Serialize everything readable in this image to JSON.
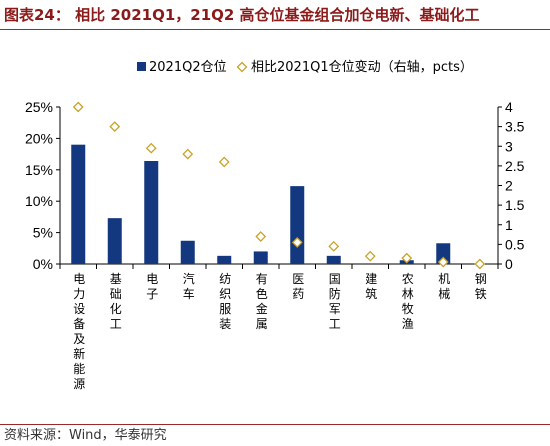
{
  "header": {
    "title": "图表24：  相比 2021Q1，21Q2 高仓位基金组合加仓电新、基础化工"
  },
  "footer": {
    "source": "资料来源：Wind，华泰研究"
  },
  "colors": {
    "bar": "#14387f",
    "marker_edge": "#c9a227",
    "title": "#8b1a1a",
    "rule": "#9a2a2a"
  },
  "chart_data": {
    "type": "bar",
    "categories": [
      "电力设备及新能源",
      "基础化工",
      "电子",
      "汽车",
      "纺织服装",
      "有色金属",
      "医药",
      "国防军工",
      "建筑",
      "农林牧渔",
      "机械",
      "钢铁"
    ],
    "series": [
      {
        "name": "2021Q2仓位",
        "type": "bar",
        "axis": "left",
        "values": [
          19.0,
          7.3,
          16.4,
          3.7,
          1.3,
          2.0,
          12.4,
          1.3,
          0.1,
          0.6,
          3.3,
          0.0
        ]
      },
      {
        "name": "相比2021Q1仓位变动（右轴，pcts）",
        "type": "scatter",
        "marker": "diamond",
        "axis": "right",
        "values": [
          4.0,
          3.5,
          2.95,
          2.8,
          2.6,
          0.7,
          0.55,
          0.45,
          0.2,
          0.15,
          0.05,
          0.0
        ]
      }
    ],
    "y_left": {
      "ylim": [
        0,
        25
      ],
      "ticks": [
        "0%",
        "5%",
        "10%",
        "15%",
        "20%",
        "25%"
      ]
    },
    "y_right": {
      "ylim": [
        0,
        4
      ],
      "ticks": [
        "0",
        "0.5",
        "1",
        "1.5",
        "2",
        "2.5",
        "3",
        "3.5",
        "4"
      ]
    },
    "legend_position": "top",
    "grid": false
  }
}
